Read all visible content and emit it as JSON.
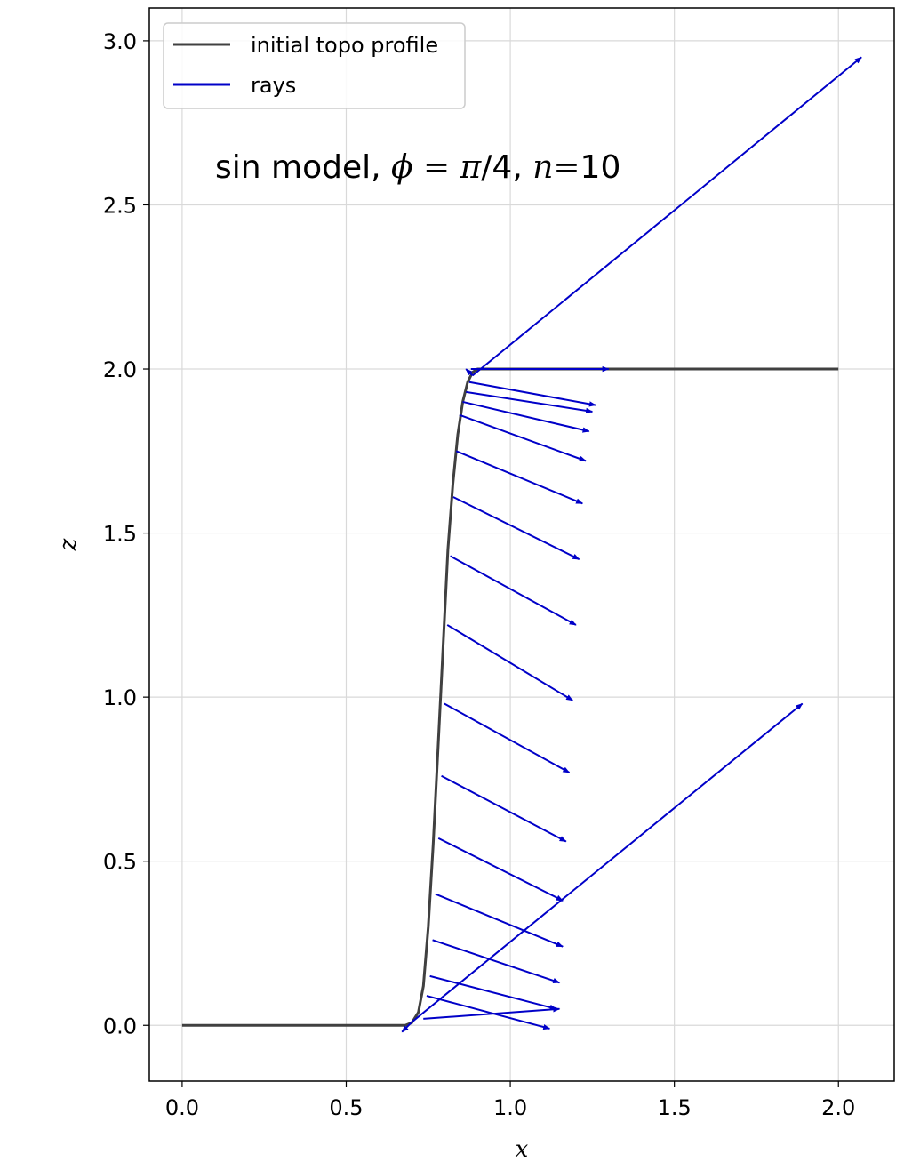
{
  "chart_data": {
    "type": "line",
    "xlabel": "x",
    "ylabel": "z",
    "xlim": [
      -0.1,
      2.17
    ],
    "ylim": [
      -0.17,
      3.1
    ],
    "xticks": [
      0.0,
      0.5,
      1.0,
      1.5,
      2.0
    ],
    "xtick_labels": [
      "0.0",
      "0.5",
      "1.0",
      "1.5",
      "2.0"
    ],
    "yticks": [
      0.0,
      0.5,
      1.0,
      1.5,
      2.0,
      2.5,
      3.0
    ],
    "ytick_labels": [
      "0.0",
      "0.5",
      "1.0",
      "1.5",
      "2.0",
      "2.5",
      "3.0"
    ],
    "grid": true,
    "legend_position": "top-left",
    "annotation": {
      "prefix": "sin model, ",
      "phi_symbol": "ϕ",
      "equals": " = ",
      "pi_symbol": "π",
      "phi_rest": "/4, ",
      "n_symbol": "n",
      "n_rest": "=10"
    },
    "series": [
      {
        "name": "initial topo profile",
        "kind": "line",
        "color": "#404040",
        "points": [
          [
            0.0,
            0.0
          ],
          [
            0.68,
            0.0
          ],
          [
            0.7,
            0.008
          ],
          [
            0.72,
            0.04
          ],
          [
            0.735,
            0.12
          ],
          [
            0.75,
            0.3
          ],
          [
            0.765,
            0.55
          ],
          [
            0.78,
            0.85
          ],
          [
            0.795,
            1.15
          ],
          [
            0.81,
            1.45
          ],
          [
            0.825,
            1.65
          ],
          [
            0.84,
            1.8
          ],
          [
            0.855,
            1.9
          ],
          [
            0.87,
            1.96
          ],
          [
            0.885,
            1.99
          ],
          [
            0.9,
            2.0
          ],
          [
            2.0,
            2.0
          ]
        ]
      },
      {
        "name": "rays",
        "kind": "arrows",
        "color": "#0000c8",
        "arrows": [
          [
            0.885,
            1.98,
            2.07,
            2.95
          ],
          [
            0.885,
            1.98,
            0.865,
            2.0
          ],
          [
            0.88,
            2.0,
            1.3,
            2.0
          ],
          [
            0.875,
            1.96,
            1.26,
            1.89
          ],
          [
            0.865,
            1.93,
            1.25,
            1.87
          ],
          [
            0.855,
            1.9,
            1.24,
            1.81
          ],
          [
            0.845,
            1.86,
            1.23,
            1.72
          ],
          [
            0.835,
            1.75,
            1.22,
            1.59
          ],
          [
            0.826,
            1.61,
            1.21,
            1.42
          ],
          [
            0.817,
            1.43,
            1.2,
            1.22
          ],
          [
            0.808,
            1.22,
            1.19,
            0.99
          ],
          [
            0.799,
            0.98,
            1.18,
            0.77
          ],
          [
            0.79,
            0.76,
            1.17,
            0.56
          ],
          [
            0.781,
            0.57,
            1.16,
            0.38
          ],
          [
            0.772,
            0.4,
            1.16,
            0.24
          ],
          [
            0.763,
            0.26,
            1.15,
            0.13
          ],
          [
            0.755,
            0.15,
            1.14,
            0.05
          ],
          [
            0.745,
            0.09,
            1.12,
            -0.01
          ],
          [
            0.735,
            0.02,
            1.15,
            0.05
          ],
          [
            0.7,
            0.01,
            1.89,
            0.98
          ],
          [
            0.7,
            0.01,
            0.67,
            -0.02
          ]
        ]
      }
    ]
  }
}
